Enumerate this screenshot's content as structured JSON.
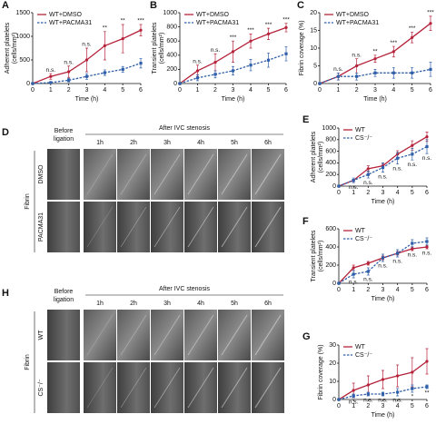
{
  "chart_data": [
    {
      "type": "line",
      "panel": "A",
      "ylabel": [
        "Adherent platelets",
        "(cells/mm²)"
      ],
      "xlabel": "Time (h)",
      "x": [
        0,
        1,
        2,
        3,
        4,
        5,
        6
      ],
      "xlim": [
        0,
        6
      ],
      "xticks": [
        0,
        1,
        2,
        3,
        4,
        5,
        6
      ],
      "ylim": [
        0,
        1500
      ],
      "yticks": [
        0,
        500,
        1000,
        1500
      ],
      "annotation_side": "above",
      "series": [
        {
          "name": "WT+DMSO",
          "color": "#b5223a",
          "dash": false,
          "values": [
            0,
            150,
            250,
            500,
            800,
            950,
            1130
          ],
          "errors": [
            0,
            60,
            120,
            250,
            300,
            300,
            120
          ]
        },
        {
          "name": "WT+PACMA31",
          "color": "#2f5fa8",
          "dash": true,
          "values": [
            0,
            20,
            70,
            150,
            230,
            300,
            430
          ],
          "errors": [
            0,
            20,
            40,
            60,
            60,
            60,
            100
          ]
        }
      ],
      "annotations": [
        {
          "x": 1,
          "text": "n.s."
        },
        {
          "x": 2,
          "text": "n.s."
        },
        {
          "x": 3,
          "text": "n.s."
        },
        {
          "x": 4,
          "text": "**"
        },
        {
          "x": 5,
          "text": "**"
        },
        {
          "x": 6,
          "text": "***"
        }
      ]
    },
    {
      "type": "line",
      "panel": "B",
      "ylabel": [
        "Transient platelets",
        "(cells/mm²)"
      ],
      "xlabel": "Time (h)",
      "x": [
        0,
        1,
        2,
        3,
        4,
        5,
        6
      ],
      "xlim": [
        0,
        6
      ],
      "xticks": [
        0,
        1,
        2,
        3,
        4,
        5,
        6
      ],
      "ylim": [
        0,
        1000
      ],
      "yticks": [
        0,
        200,
        400,
        600,
        800,
        1000
      ],
      "annotation_side": "above",
      "series": [
        {
          "name": "WT+DMSO",
          "color": "#b5223a",
          "dash": false,
          "values": [
            0,
            180,
            300,
            450,
            600,
            700,
            790
          ],
          "errors": [
            0,
            80,
            120,
            150,
            100,
            80,
            60
          ]
        },
        {
          "name": "WT+PACMA31",
          "color": "#2f5fa8",
          "dash": true,
          "values": [
            0,
            80,
            130,
            180,
            260,
            330,
            420
          ],
          "errors": [
            0,
            40,
            50,
            60,
            80,
            100,
            100
          ]
        }
      ],
      "annotations": [
        {
          "x": 1,
          "text": "n.s."
        },
        {
          "x": 2,
          "text": "n.s."
        },
        {
          "x": 3,
          "text": "***"
        },
        {
          "x": 4,
          "text": "***"
        },
        {
          "x": 5,
          "text": "***"
        },
        {
          "x": 6,
          "text": "***"
        }
      ]
    },
    {
      "type": "line",
      "panel": "C",
      "ylabel": [
        "Fibrin coverage (%)"
      ],
      "xlabel": "Time (h)",
      "x": [
        0,
        1,
        2,
        3,
        4,
        5,
        6
      ],
      "xlim": [
        0,
        6
      ],
      "xticks": [
        0,
        1,
        2,
        3,
        4,
        5,
        6
      ],
      "ylim": [
        0,
        20
      ],
      "yticks": [
        0,
        5,
        10,
        15,
        20
      ],
      "annotation_side": "above",
      "series": [
        {
          "name": "WT+DMSO",
          "color": "#b5223a",
          "dash": false,
          "values": [
            0,
            2,
            5,
            7,
            9,
            13,
            17
          ],
          "errors": [
            0,
            1,
            2,
            1,
            1.5,
            1.5,
            2
          ]
        },
        {
          "name": "WT+PACMA31",
          "color": "#2f5fa8",
          "dash": true,
          "values": [
            0,
            2,
            2,
            3,
            3,
            3,
            4
          ],
          "errors": [
            0,
            1,
            1,
            1,
            1.5,
            1.5,
            2
          ]
        }
      ],
      "annotations": [
        {
          "x": 1,
          "text": "n.s."
        },
        {
          "x": 2,
          "text": "n.s."
        },
        {
          "x": 3,
          "text": "**"
        },
        {
          "x": 4,
          "text": "***"
        },
        {
          "x": 5,
          "text": "***"
        },
        {
          "x": 6,
          "text": "***"
        }
      ]
    },
    {
      "type": "line",
      "panel": "E",
      "ylabel": [
        "Adherent platelets",
        "(cells/mm²)"
      ],
      "xlabel": "Time (h)",
      "x": [
        0,
        1,
        2,
        3,
        4,
        5,
        6
      ],
      "xlim": [
        0,
        6
      ],
      "xticks": [
        0,
        1,
        2,
        3,
        4,
        5,
        6
      ],
      "ylim": [
        0,
        1000
      ],
      "yticks": [
        0,
        200,
        400,
        600,
        800,
        1000
      ],
      "annotation_side": "below",
      "series": [
        {
          "name": "WT",
          "color": "#b5223a",
          "dash": false,
          "values": [
            0,
            100,
            300,
            350,
            550,
            700,
            850
          ],
          "errors": [
            0,
            20,
            50,
            40,
            60,
            80,
            80
          ]
        },
        {
          "name": "CS⁻/⁻",
          "color": "#2f5fa8",
          "dash": true,
          "values": [
            0,
            100,
            200,
            320,
            480,
            550,
            680
          ],
          "errors": [
            0,
            40,
            60,
            80,
            100,
            100,
            120
          ]
        }
      ],
      "annotations": [
        {
          "x": 1,
          "text": "n.s."
        },
        {
          "x": 2,
          "text": "n.s."
        },
        {
          "x": 3,
          "text": "n.s."
        },
        {
          "x": 4,
          "text": "n.s."
        },
        {
          "x": 5,
          "text": "n.s."
        },
        {
          "x": 6,
          "text": "n.s."
        }
      ]
    },
    {
      "type": "line",
      "panel": "F",
      "ylabel": [
        "Transient platelets",
        "(cells/mm²)"
      ],
      "xlabel": "Time (h)",
      "x": [
        0,
        1,
        2,
        3,
        4,
        5,
        6
      ],
      "xlim": [
        0,
        6
      ],
      "xticks": [
        0,
        1,
        2,
        3,
        4,
        5,
        6
      ],
      "ylim": [
        0,
        600
      ],
      "yticks": [
        0,
        200,
        400,
        600
      ],
      "annotation_side": "below",
      "series": [
        {
          "name": "WT",
          "color": "#b5223a",
          "dash": false,
          "values": [
            0,
            170,
            220,
            280,
            330,
            380,
            400
          ],
          "errors": [
            0,
            30,
            20,
            20,
            20,
            20,
            20
          ]
        },
        {
          "name": "CS⁻/⁻",
          "color": "#2f5fa8",
          "dash": true,
          "values": [
            0,
            100,
            130,
            280,
            330,
            440,
            460
          ],
          "errors": [
            0,
            40,
            40,
            40,
            40,
            40,
            40
          ]
        }
      ],
      "annotations": [
        {
          "x": 1,
          "text": "n.s."
        },
        {
          "x": 2,
          "text": "n.s."
        },
        {
          "x": 3,
          "text": "n.s."
        },
        {
          "x": 4,
          "text": "n.s."
        },
        {
          "x": 5,
          "text": "n.s."
        },
        {
          "x": 6,
          "text": "n.s."
        }
      ]
    },
    {
      "type": "line",
      "panel": "G",
      "ylabel": [
        "Fibrin coverage (%)"
      ],
      "xlabel": "Time (h)",
      "x": [
        0,
        1,
        2,
        3,
        4,
        5,
        6
      ],
      "xlim": [
        0,
        6
      ],
      "xticks": [
        0,
        1,
        2,
        3,
        4,
        5,
        6
      ],
      "ylim": [
        0,
        30
      ],
      "yticks": [
        0,
        10,
        20,
        30
      ],
      "annotation_side": "below",
      "series": [
        {
          "name": "WT",
          "color": "#b5223a",
          "dash": false,
          "values": [
            0,
            5,
            8,
            11,
            13,
            15,
            21
          ],
          "errors": [
            0,
            4,
            5,
            5,
            6,
            8,
            7
          ]
        },
        {
          "name": "CS⁻/⁻",
          "color": "#2f5fa8",
          "dash": true,
          "values": [
            0,
            2,
            3,
            3,
            4,
            6,
            7
          ],
          "errors": [
            0,
            1,
            1,
            1,
            2,
            2,
            1
          ]
        }
      ],
      "annotations": [
        {
          "x": 1,
          "text": "n.s."
        },
        {
          "x": 2,
          "text": "n.s."
        },
        {
          "x": 3,
          "text": "n.s."
        },
        {
          "x": 4,
          "text": "n.s."
        },
        {
          "x": 5,
          "text": "*"
        },
        {
          "x": 6,
          "text": "**"
        }
      ]
    }
  ],
  "figures": [
    {
      "panel": "D",
      "before": [
        "Before",
        "ligation"
      ],
      "after": "After IVC stenosis",
      "times": [
        "1h",
        "2h",
        "3h",
        "4h",
        "5h",
        "6h"
      ],
      "rows": [
        "DMSO",
        "PACMA31"
      ],
      "stain": "Fibrin"
    },
    {
      "panel": "H",
      "before": [
        "Before",
        "ligation"
      ],
      "after": "After IVC stenosis",
      "times": [
        "1h",
        "2h",
        "3h",
        "4h",
        "5h",
        "6h"
      ],
      "rows": [
        "WT",
        "CS⁻/⁻"
      ],
      "stain": "Fibrin"
    }
  ]
}
